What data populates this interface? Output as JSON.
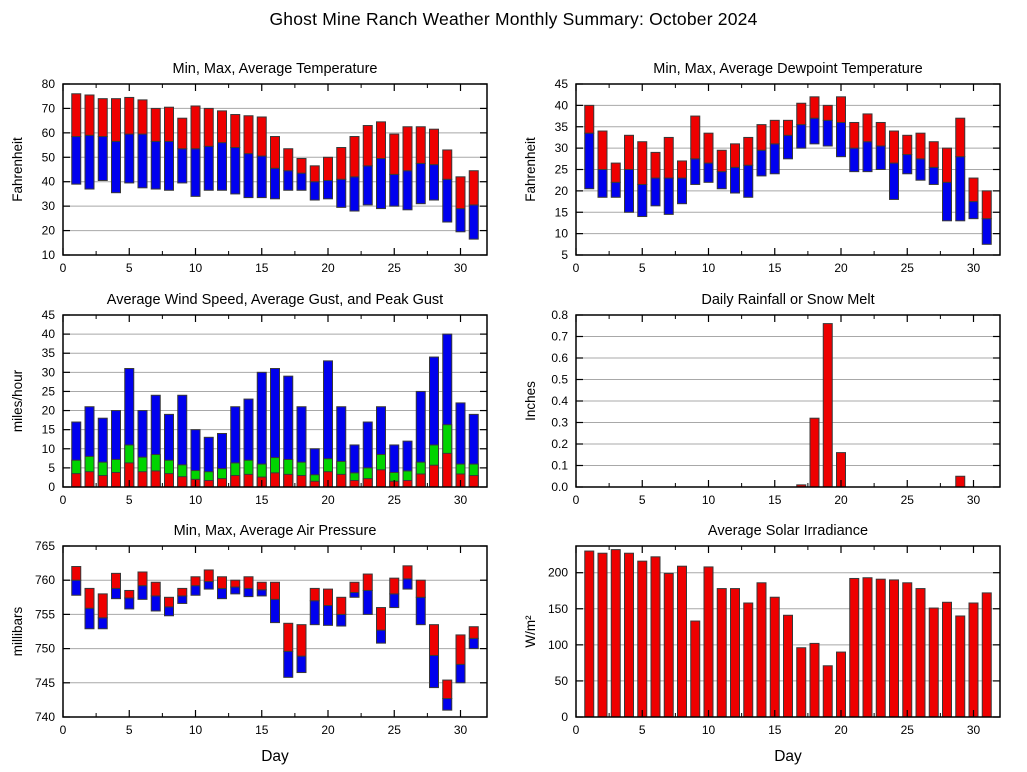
{
  "page": {
    "title": "Ghost Mine Ranch Weather Monthly Summary: October 2024"
  },
  "colors": {
    "max_red": "#ee0000",
    "min_blue": "#0000ee",
    "gust_green": "#00d400",
    "grid": "#a8a8a8",
    "axis": "#000000",
    "bar_outline": "#383838",
    "background": "#ffffff"
  },
  "chart_data": {
    "days": [
      1,
      2,
      3,
      4,
      5,
      6,
      7,
      8,
      9,
      10,
      11,
      12,
      13,
      14,
      15,
      16,
      17,
      18,
      19,
      20,
      21,
      22,
      23,
      24,
      25,
      26,
      27,
      28,
      29,
      30,
      31
    ],
    "charts": [
      {
        "id": "temperature",
        "type": "range-bar",
        "title": "Min, Max, Average Temperature",
        "ylabel": "Fahrenheit",
        "xlabel": "",
        "ylim": [
          10,
          80
        ],
        "yticks": [
          10,
          20,
          30,
          40,
          50,
          60,
          70,
          80
        ],
        "ytick_decimals": 0,
        "xlim": [
          0,
          32
        ],
        "xticks": [
          0,
          5,
          10,
          15,
          20,
          25,
          30
        ],
        "legend_note": "blue = min to average, red = average to max",
        "series": [
          {
            "name": "min",
            "color": "blue",
            "values": [
              39,
              37,
              40.5,
              35.5,
              39.5,
              37.5,
              37,
              36.5,
              39.5,
              34,
              36.5,
              36.5,
              35,
              33.5,
              33.5,
              33,
              36.5,
              36.5,
              32.5,
              33,
              29.5,
              28,
              30.5,
              29,
              30,
              28.5,
              31,
              32.5,
              23.5,
              19.5,
              16.5
            ]
          },
          {
            "name": "average",
            "color": "boundary",
            "values": [
              58.5,
              59,
              58.5,
              56.5,
              59.5,
              59.5,
              56.5,
              56.5,
              53.5,
              53.5,
              54.5,
              56,
              54,
              51.5,
              50.5,
              45.5,
              44.5,
              43.5,
              40,
              40.5,
              41,
              42,
              46.5,
              49.5,
              43,
              44.5,
              47.5,
              47,
              41,
              29,
              30.5
            ]
          },
          {
            "name": "max",
            "color": "red",
            "values": [
              76,
              75.5,
              74,
              74,
              74.5,
              73.5,
              70,
              70.5,
              66,
              71,
              70,
              69,
              67.5,
              67,
              66.5,
              58.5,
              53.5,
              49.5,
              46.5,
              50,
              54,
              58.5,
              63,
              64.5,
              59.5,
              62.5,
              62.5,
              61.5,
              53,
              42,
              44.5
            ]
          }
        ]
      },
      {
        "id": "dewpoint",
        "type": "range-bar",
        "title": "Min, Max, Average Dewpoint Temperature",
        "ylabel": "Fahrenheit",
        "xlabel": "",
        "ylim": [
          5,
          45
        ],
        "yticks": [
          5,
          10,
          15,
          20,
          25,
          30,
          35,
          40,
          45
        ],
        "ytick_decimals": 0,
        "xlim": [
          0,
          32
        ],
        "xticks": [
          0,
          5,
          10,
          15,
          20,
          25,
          30
        ],
        "legend_note": "blue = min to average, red = average to max",
        "series": [
          {
            "name": "min",
            "color": "blue",
            "values": [
              20.5,
              18.5,
              18.5,
              15,
              14,
              16.5,
              14.5,
              17,
              21.5,
              22,
              20.5,
              19.5,
              18.5,
              23.5,
              24,
              27.5,
              30,
              31,
              30.5,
              28,
              24.5,
              24.5,
              25,
              18,
              24,
              22.5,
              21.5,
              13,
              13,
              13.5,
              7.5
            ]
          },
          {
            "name": "average",
            "color": "boundary",
            "values": [
              33.5,
              25,
              22,
              25,
              21.5,
              23,
              23,
              23,
              27.5,
              26.5,
              24.5,
              25.5,
              26,
              29.5,
              31,
              33,
              35.5,
              37,
              36.5,
              36,
              30,
              31.5,
              30.5,
              26.5,
              28.5,
              27.5,
              25.5,
              22,
              28,
              17.5,
              13.5
            ]
          },
          {
            "name": "max",
            "color": "red",
            "values": [
              40,
              34,
              26.5,
              33,
              31.5,
              29,
              32.5,
              27,
              37.5,
              33.5,
              29.5,
              31,
              32.5,
              35.5,
              36.5,
              36.5,
              40.5,
              42,
              40,
              42,
              36,
              38,
              36,
              34,
              33,
              33.5,
              31.5,
              30,
              37,
              23,
              20
            ]
          }
        ]
      },
      {
        "id": "wind",
        "type": "overlay-bar",
        "title": "Average Wind Speed, Average Gust, and Peak Gust",
        "ylabel": "miles/hour",
        "xlabel": "",
        "ylim": [
          0,
          45
        ],
        "yticks": [
          0,
          5,
          10,
          15,
          20,
          25,
          30,
          35,
          40,
          45
        ],
        "ytick_decimals": 0,
        "xlim": [
          0,
          32
        ],
        "xticks": [
          0,
          5,
          10,
          15,
          20,
          25,
          30
        ],
        "legend_note": "blue = peak gust, green = average gust, red = average wind speed",
        "series": [
          {
            "name": "peak_gust",
            "color": "blue",
            "values": [
              17,
              21,
              18,
              20,
              31,
              20,
              24,
              19,
              24,
              15,
              13,
              14,
              21,
              23,
              30,
              31,
              29,
              21,
              10,
              33,
              21,
              11,
              17,
              21,
              11,
              12,
              25,
              34,
              40,
              22,
              19
            ]
          },
          {
            "name": "average_gust",
            "color": "green",
            "values": [
              7,
              8,
              6.5,
              7.2,
              11,
              7.8,
              8.5,
              7,
              5.8,
              4.3,
              4,
              4.8,
              6.3,
              7,
              6,
              7.7,
              7.2,
              6.5,
              3.2,
              7.4,
              6.7,
              3.7,
              5,
              8.5,
              3.8,
              4.2,
              6.5,
              11,
              16.3,
              6,
              6
            ]
          },
          {
            "name": "average_wind_speed",
            "color": "red",
            "values": [
              3.5,
              4,
              3,
              3.8,
              6.3,
              4,
              4.2,
              3.5,
              2.7,
              2,
              1.7,
              2.2,
              3,
              3.3,
              2.6,
              3.7,
              3.3,
              3,
              1.5,
              4,
              3.3,
              1.7,
              2.2,
              4.5,
              1.5,
              1.7,
              3.4,
              5.7,
              8.8,
              3.4,
              3
            ]
          }
        ]
      },
      {
        "id": "rainfall",
        "type": "bar",
        "title": "Daily Rainfall or Snow Melt",
        "ylabel": "Inches",
        "xlabel": "",
        "ylim": [
          0,
          0.8
        ],
        "yticks": [
          0,
          0.1,
          0.2,
          0.3,
          0.4,
          0.5,
          0.6,
          0.7,
          0.8
        ],
        "ytick_decimals": 1,
        "xlim": [
          0,
          32
        ],
        "xticks": [
          0,
          5,
          10,
          15,
          20,
          25,
          30
        ],
        "series": [
          {
            "name": "rainfall",
            "color": "red",
            "values": [
              0,
              0,
              0,
              0,
              0,
              0,
              0,
              0,
              0,
              0,
              0,
              0,
              0,
              0,
              0,
              0,
              0.01,
              0.32,
              0.76,
              0.16,
              0,
              0,
              0,
              0,
              0,
              0,
              0,
              0,
              0.05,
              0,
              0
            ]
          }
        ]
      },
      {
        "id": "pressure",
        "type": "range-bar",
        "title": "Min, Max, Average Air Pressure",
        "ylabel": "millibars",
        "xlabel": "Day",
        "ylim": [
          740,
          765
        ],
        "yticks": [
          740,
          745,
          750,
          755,
          760,
          765
        ],
        "ytick_decimals": 0,
        "xlim": [
          0,
          32
        ],
        "xticks": [
          0,
          5,
          10,
          15,
          20,
          25,
          30
        ],
        "legend_note": "blue = min to average, red = average to max",
        "series": [
          {
            "name": "min",
            "color": "blue",
            "values": [
              757.8,
              752.9,
              752.9,
              757.3,
              755.8,
              757.2,
              755.5,
              754.8,
              756.6,
              757.8,
              758.7,
              757.3,
              758,
              757.6,
              757.7,
              753.8,
              745.8,
              746.5,
              753.5,
              753.4,
              753.3,
              757.5,
              755,
              750.8,
              756,
              758.7,
              753.5,
              744.3,
              741,
              745,
              750
            ]
          },
          {
            "name": "average",
            "color": "boundary",
            "values": [
              760,
              755.9,
              754.5,
              758.8,
              757.4,
              759.2,
              757.7,
              756.1,
              757.7,
              759.2,
              759.8,
              758.8,
              759,
              758.8,
              758.6,
              757.2,
              749.6,
              748.9,
              757,
              756.3,
              755,
              758.2,
              758.5,
              752.7,
              758,
              760.2,
              757.5,
              749,
              742.7,
              747.7,
              751.5
            ]
          },
          {
            "name": "max",
            "color": "red",
            "values": [
              762,
              758.8,
              758,
              761,
              758.5,
              761.2,
              759.7,
              757.5,
              758.8,
              760.5,
              761.5,
              760.5,
              760,
              760.5,
              759.7,
              759.7,
              753.7,
              753.5,
              758.8,
              758.7,
              757.5,
              759.7,
              760.9,
              756,
              760.3,
              762.1,
              760,
              753.5,
              745.4,
              752,
              753.2
            ]
          }
        ]
      },
      {
        "id": "solar",
        "type": "bar",
        "title": "Average Solar Irradiance",
        "ylabel": "W/m²",
        "xlabel": "Day",
        "ylim": [
          0,
          237
        ],
        "yticks": [
          0,
          50,
          100,
          150,
          200
        ],
        "ytick_decimals": 0,
        "xlim": [
          0,
          32
        ],
        "xticks": [
          0,
          5,
          10,
          15,
          20,
          25,
          30
        ],
        "series": [
          {
            "name": "solar_irradiance",
            "color": "red",
            "values": [
              230,
              227,
              232,
              227,
              216,
              222,
              199,
              209,
              133,
              208,
              178,
              178,
              158,
              186,
              166,
              141,
              96,
              102,
              71,
              90,
              192,
              193,
              191,
              190,
              186,
              178,
              151,
              159,
              140,
              158,
              172
            ]
          }
        ]
      }
    ]
  }
}
